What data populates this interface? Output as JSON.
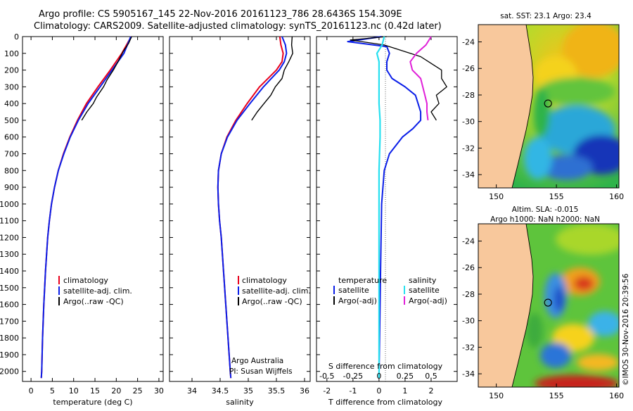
{
  "header": {
    "line1": "Argo profile: CS 5905167_145 22-Nov-2016 20161123_786 28.6436S 154.309E",
    "line2": "Climatology: CARS2009. Satellite-adjusted climatology: synTS_20161123.nc (0.42d later)"
  },
  "depth_ticks": [
    "0",
    "100",
    "200",
    "300",
    "400",
    "500",
    "600",
    "700",
    "800",
    "900",
    "1000",
    "1100",
    "1200",
    "1300",
    "1400",
    "1500",
    "1600",
    "1700",
    "1800",
    "1900",
    "2000"
  ],
  "colors": {
    "climatology": "#e8001c",
    "satellite": "#0a1ee8",
    "argo": "#000000",
    "sal_satellite": "#27e0f0",
    "sal_argo": "#e020d8",
    "land": "#f8c89c"
  },
  "chart_data": [
    {
      "type": "line",
      "id": "temperature",
      "xlabel": "temperature (deg C)",
      "xlim": [
        -2,
        31
      ],
      "ylim": [
        2060,
        0
      ],
      "xticks": [
        "0",
        "5",
        "10",
        "15",
        "20",
        "25",
        "30"
      ],
      "legend": [
        "climatology",
        "satellite-adj. clim.",
        "Argo(..raw -QC)"
      ],
      "series": [
        {
          "name": "climatology",
          "depth": [
            0,
            50,
            100,
            200,
            300,
            400,
            500,
            600,
            700,
            800,
            900,
            1000,
            1100,
            1200,
            1400,
            1600,
            1800,
            2000,
            2040
          ],
          "values": [
            23.5,
            22.4,
            21.3,
            18.6,
            15.7,
            13.0,
            10.9,
            9.1,
            7.6,
            6.4,
            5.5,
            4.8,
            4.3,
            3.9,
            3.4,
            3.0,
            2.7,
            2.5,
            2.4
          ]
        },
        {
          "name": "satellite-adj. clim.",
          "depth": [
            0,
            50,
            100,
            200,
            300,
            400,
            500,
            600,
            700,
            800,
            900,
            1000,
            1100,
            1200,
            1400,
            1600,
            1800,
            2000,
            2040
          ],
          "values": [
            23.4,
            22.6,
            21.8,
            19.0,
            16.2,
            13.4,
            11.1,
            9.2,
            7.7,
            6.4,
            5.5,
            4.8,
            4.3,
            3.9,
            3.4,
            3.0,
            2.7,
            2.5,
            2.4
          ]
        },
        {
          "name": "Argo(..raw -QC)",
          "depth": [
            0,
            40,
            90,
            150,
            200,
            260,
            300,
            360,
            400,
            450,
            500
          ],
          "values": [
            23.6,
            22.9,
            21.6,
            20.4,
            19.3,
            17.8,
            17.0,
            15.4,
            14.6,
            13.1,
            11.9
          ]
        }
      ]
    },
    {
      "type": "line",
      "id": "salinity",
      "xlabel": "salinity",
      "xlim": [
        33.6,
        36.1
      ],
      "ylim": [
        2060,
        0
      ],
      "xticks": [
        "34",
        "34.5",
        "35",
        "35.5",
        "36"
      ],
      "legend": [
        "climatology",
        "satellite-adj. clim.",
        "Argo(..raw -QC)"
      ],
      "annotation": [
        "Argo Australia",
        "PI: Susan Wijffels"
      ],
      "series": [
        {
          "name": "climatology",
          "depth": [
            0,
            50,
            100,
            150,
            200,
            300,
            400,
            500,
            600,
            700,
            800,
            900,
            1000,
            1100,
            1200,
            1400,
            1600,
            1800,
            2000,
            2040
          ],
          "values": [
            35.56,
            35.58,
            35.62,
            35.6,
            35.5,
            35.2,
            34.98,
            34.78,
            34.62,
            34.52,
            34.47,
            34.46,
            34.47,
            34.49,
            34.52,
            34.56,
            34.6,
            34.64,
            34.68,
            34.69
          ]
        },
        {
          "name": "satellite-adj. clim.",
          "depth": [
            0,
            50,
            100,
            150,
            200,
            300,
            400,
            500,
            600,
            700,
            800,
            900,
            1000,
            1100,
            1200,
            1400,
            1600,
            1800,
            2000,
            2040
          ],
          "values": [
            35.6,
            35.66,
            35.68,
            35.64,
            35.55,
            35.27,
            35.03,
            34.8,
            34.63,
            34.52,
            34.47,
            34.46,
            34.47,
            34.49,
            34.52,
            34.56,
            34.6,
            34.64,
            34.68,
            34.69
          ]
        },
        {
          "name": "Argo(..raw -QC)",
          "depth": [
            0,
            50,
            100,
            150,
            200,
            250,
            300,
            350,
            400,
            450,
            500
          ],
          "values": [
            35.78,
            35.77,
            35.79,
            35.72,
            35.64,
            35.6,
            35.48,
            35.4,
            35.28,
            35.16,
            35.06
          ]
        }
      ]
    },
    {
      "type": "line",
      "id": "difference",
      "xlabel": "T difference from climatology",
      "xlabel_top": "S difference from climatology",
      "xlim": [
        -2.4,
        3.0
      ],
      "ylim": [
        2060,
        0
      ],
      "xticks": [
        "-2",
        "-1",
        "0",
        "1",
        "2"
      ],
      "xticks_top": [
        "-0.5",
        "-0.25",
        "0",
        "0.25",
        "0.5"
      ],
      "legend_temperature": [
        "temperature",
        "satellite",
        "Argo(-adj)"
      ],
      "legend_salinity": [
        "salinity",
        "satellite",
        "Argo(-adj)"
      ],
      "series": [
        {
          "name": "T satellite",
          "depth": [
            0,
            30,
            60,
            100,
            150,
            200,
            250,
            300,
            350,
            400,
            450,
            500,
            550,
            600,
            700,
            800,
            1000,
            1500,
            2040
          ],
          "values": [
            0.1,
            -1.2,
            0.3,
            0.4,
            0.3,
            0.3,
            0.5,
            1.0,
            1.4,
            1.5,
            1.6,
            1.6,
            1.3,
            0.9,
            0.4,
            0.2,
            0.1,
            0.05,
            0.0
          ]
        },
        {
          "name": "T Argo(-adj)",
          "depth": [
            0,
            20,
            50,
            80,
            120,
            160,
            200,
            250,
            300,
            350,
            400,
            450,
            500
          ],
          "values": [
            0.3,
            -1.1,
            0.2,
            0.8,
            1.6,
            2.0,
            2.4,
            2.4,
            2.6,
            2.2,
            2.3,
            2.0,
            2.2
          ]
        },
        {
          "name": "S satellite",
          "depth": [
            0,
            50,
            100,
            150,
            200,
            300,
            400,
            500,
            600,
            800,
            1000,
            1500,
            2040
          ],
          "values": [
            0.05,
            0.03,
            -0.02,
            0.0,
            0.0,
            0.0,
            0.0,
            0.01,
            0.01,
            0.0,
            0.0,
            0.0,
            0.0
          ]
        },
        {
          "name": "S Argo(-adj)",
          "depth": [
            0,
            50,
            100,
            150,
            200,
            250,
            300,
            350,
            400,
            450,
            500
          ],
          "values": [
            0.5,
            0.45,
            0.36,
            0.3,
            0.32,
            0.4,
            0.42,
            0.44,
            0.46,
            0.46,
            0.47
          ]
        }
      ]
    },
    {
      "type": "heatmap",
      "id": "sst-map",
      "title": "sat. SST: 23.1  Argo: 23.4",
      "xticks": [
        "150",
        "155",
        "160"
      ],
      "yticks": [
        "-24",
        "-26",
        "-28",
        "-30",
        "-32",
        "-34"
      ],
      "lon_range": [
        148.5,
        160.2
      ],
      "lat_range": [
        -35.0,
        -22.7
      ],
      "marker": {
        "lon": 154.3,
        "lat": -28.64
      }
    },
    {
      "type": "heatmap",
      "id": "sla-map",
      "title": "Altim. SLA: -0.015",
      "subtitle": "Argo h1000: NaN h2000: NaN",
      "xticks": [
        "150",
        "155",
        "160"
      ],
      "yticks": [
        "-24",
        "-26",
        "-28",
        "-30",
        "-32",
        "-34"
      ],
      "lon_range": [
        148.5,
        160.2
      ],
      "lat_range": [
        -35.0,
        -22.7
      ],
      "marker": {
        "lon": 154.3,
        "lat": -28.64
      }
    }
  ],
  "side_stamp": "©IMOS 30-Nov-2016 20:39:56"
}
